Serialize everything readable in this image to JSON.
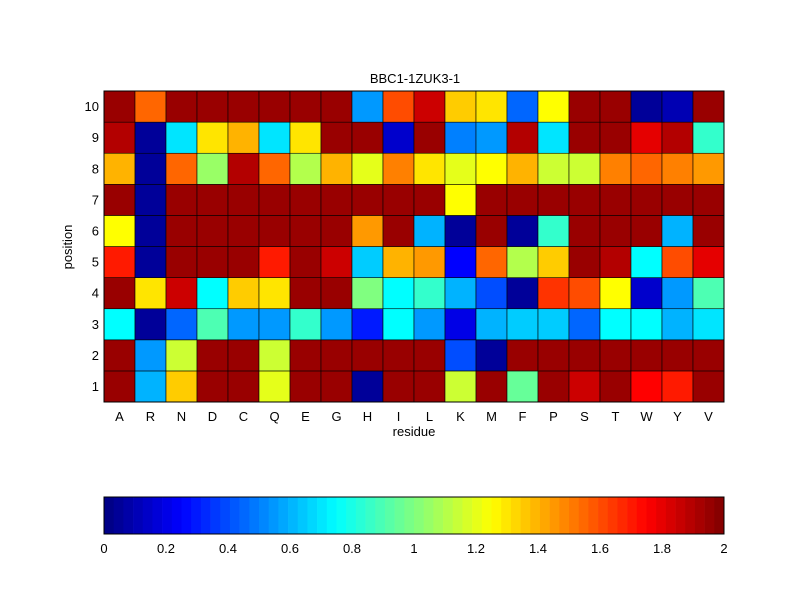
{
  "chart_data": [
    {
      "type": "heatmap",
      "title": "BBC1-1ZUK3-1",
      "xlabel": "residue",
      "ylabel": "position",
      "x_categories": [
        "A",
        "R",
        "N",
        "D",
        "C",
        "Q",
        "E",
        "G",
        "H",
        "I",
        "L",
        "K",
        "M",
        "F",
        "P",
        "S",
        "T",
        "W",
        "Y",
        "V"
      ],
      "y_categories": [
        "1",
        "2",
        "3",
        "4",
        "5",
        "6",
        "7",
        "8",
        "9",
        "10"
      ],
      "value_range": [
        0,
        2
      ],
      "colormap": "jet",
      "values": [
        [
          1.95,
          0.6,
          1.35,
          1.95,
          1.95,
          1.2,
          1.95,
          1.95,
          0.05,
          1.95,
          1.95,
          1.15,
          1.95,
          0.95,
          1.95,
          1.85,
          1.95,
          1.75,
          1.7,
          1.95
        ],
        [
          1.95,
          0.55,
          1.15,
          1.95,
          1.95,
          1.15,
          1.95,
          1.95,
          1.95,
          1.95,
          1.95,
          0.4,
          0.05,
          1.95,
          1.95,
          1.95,
          1.95,
          1.95,
          1.95,
          1.95
        ],
        [
          0.75,
          0.05,
          0.45,
          0.9,
          0.55,
          0.55,
          0.85,
          0.55,
          0.3,
          0.75,
          0.55,
          0.2,
          0.6,
          0.65,
          0.65,
          0.45,
          0.75,
          0.75,
          0.6,
          0.7
        ],
        [
          1.95,
          1.3,
          1.85,
          0.75,
          1.35,
          1.3,
          1.95,
          1.95,
          1.0,
          0.75,
          0.85,
          0.6,
          0.4,
          0.05,
          1.65,
          1.6,
          1.25,
          0.15,
          0.55,
          0.9
        ],
        [
          1.7,
          0.05,
          1.95,
          1.95,
          1.95,
          1.7,
          1.95,
          1.85,
          0.65,
          1.4,
          1.45,
          0.25,
          1.55,
          1.1,
          1.35,
          1.95,
          1.9,
          0.75,
          1.6,
          1.8
        ],
        [
          1.25,
          0.05,
          1.95,
          1.95,
          1.95,
          1.95,
          1.95,
          1.95,
          1.45,
          1.95,
          0.6,
          0.05,
          1.95,
          0.05,
          0.85,
          1.95,
          1.95,
          1.95,
          0.6,
          1.95
        ],
        [
          1.95,
          0.05,
          1.95,
          1.95,
          1.95,
          1.95,
          1.95,
          1.95,
          1.95,
          1.95,
          1.95,
          1.25,
          1.95,
          1.95,
          1.95,
          1.95,
          1.95,
          1.95,
          1.95,
          1.95
        ],
        [
          1.4,
          0.05,
          1.55,
          1.05,
          1.9,
          1.55,
          1.1,
          1.4,
          1.2,
          1.5,
          1.3,
          1.2,
          1.25,
          1.4,
          1.15,
          1.15,
          1.5,
          1.55,
          1.5,
          1.45
        ],
        [
          1.9,
          0.05,
          0.7,
          1.3,
          1.4,
          0.7,
          1.3,
          1.95,
          1.95,
          0.15,
          1.95,
          0.5,
          0.55,
          1.9,
          0.7,
          1.95,
          1.95,
          1.8,
          1.9,
          0.85
        ],
        [
          1.95,
          1.55,
          1.95,
          1.95,
          1.95,
          1.95,
          1.95,
          1.95,
          0.55,
          1.6,
          1.85,
          1.35,
          1.3,
          0.45,
          1.25,
          1.95,
          1.95,
          0.05,
          0.1,
          1.95
        ]
      ]
    },
    {
      "type": "colorbar",
      "ticks": [
        "0",
        "0.2",
        "0.4",
        "0.6",
        "0.8",
        "1",
        "1.2",
        "1.4",
        "1.6",
        "1.8",
        "2"
      ],
      "range": [
        0,
        2
      ],
      "colormap": "jet",
      "levels": 64
    }
  ]
}
